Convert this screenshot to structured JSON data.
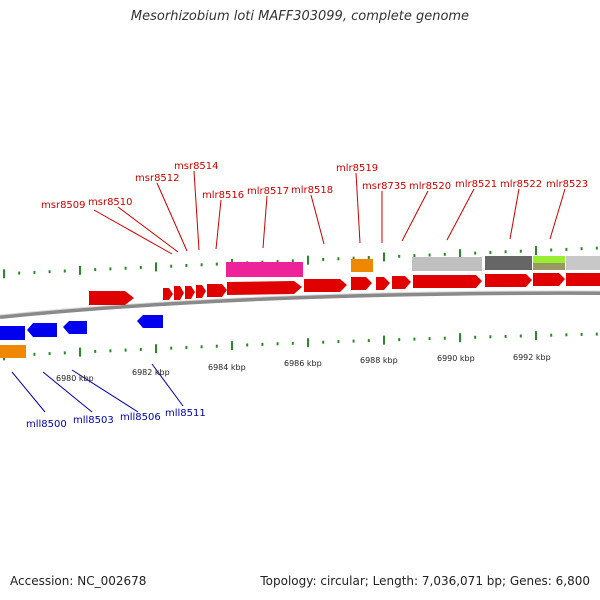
{
  "title": "Mesorhizobium loti MAFF303099, complete genome",
  "footer": {
    "accession": "Accession: NC_002678",
    "summary": "Topology: circular; Length: 7,036,071 bp; Genes: 6,800"
  },
  "colors": {
    "forward_gene": "#e00000",
    "reverse_gene": "#0000ee",
    "forward_label": "#cc0000",
    "reverse_label": "#0000aa",
    "tick": "#2a8a2a",
    "backbone": "#888888"
  },
  "scale_ticks": [
    "6980 kbp",
    "6982 kbp",
    "6984 kbp",
    "6986 kbp",
    "6988 kbp",
    "6990 kbp",
    "6992 kbp"
  ],
  "forward_labels": [
    "msr8509",
    "msr8510",
    "msr8512",
    "msr8514",
    "mlr8516",
    "mlr8517",
    "mlr8518",
    "mlr8519",
    "msr8735",
    "mlr8520",
    "mlr8521",
    "mlr8522",
    "mlr8523"
  ],
  "reverse_labels": [
    "mll8500",
    "mll8503",
    "mll8506",
    "mll8511"
  ]
}
